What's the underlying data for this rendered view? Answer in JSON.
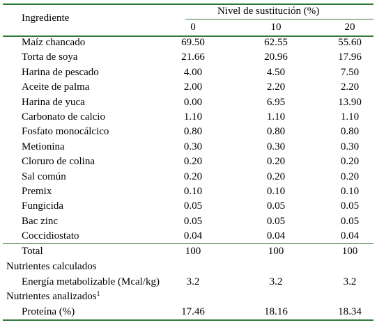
{
  "header": {
    "ingredient_label": "Ingrediente",
    "group_label": "Nivel de sustitución (%)",
    "columns": [
      "0",
      "10",
      "20"
    ]
  },
  "rows": [
    {
      "name": "Maíz chancado",
      "values": [
        "69.50",
        "62.55",
        "55.60"
      ]
    },
    {
      "name": "Torta de soya",
      "values": [
        "21.66",
        "20.96",
        "17.96"
      ]
    },
    {
      "name": "Harina de pescado",
      "values": [
        "4.00",
        "4.50",
        "7.50"
      ]
    },
    {
      "name": "Aceite de palma",
      "values": [
        "2.00",
        "2.20",
        "2.20"
      ]
    },
    {
      "name": "Harina de yuca",
      "values": [
        "0.00",
        "6.95",
        "13.90"
      ]
    },
    {
      "name": "Carbonato de calcio",
      "values": [
        "1.10",
        "1.10",
        "1.10"
      ]
    },
    {
      "name": "Fosfato monocálcico",
      "values": [
        "0.80",
        "0.80",
        "0.80"
      ]
    },
    {
      "name": "Metionina",
      "values": [
        "0.30",
        "0.30",
        "0.30"
      ]
    },
    {
      "name": "Cloruro de colina",
      "values": [
        "0.20",
        "0.20",
        "0.20"
      ]
    },
    {
      "name": "Sal común",
      "values": [
        "0.20",
        "0.20",
        "0.20"
      ]
    },
    {
      "name": "Premix",
      "values": [
        "0.10",
        "0.10",
        "0.10"
      ]
    },
    {
      "name": "Fungicida",
      "values": [
        "0.05",
        "0.05",
        "0.05"
      ]
    },
    {
      "name": "Bac zinc",
      "values": [
        "0.05",
        "0.05",
        "0.05"
      ]
    },
    {
      "name": "Coccidiostato",
      "values": [
        "0.04",
        "0.04",
        "0.04"
      ]
    }
  ],
  "total": {
    "name": "Total",
    "values": [
      "100",
      "100",
      "100"
    ]
  },
  "calculated": {
    "heading": "Nutrientes calculados",
    "rows": [
      {
        "name": "Energía metabolizable (Mcal/kg)",
        "values": [
          "3.2",
          "3.2",
          "3.2"
        ]
      }
    ]
  },
  "analyzed": {
    "heading": "Nutrientes analizados",
    "footnote_mark": "1",
    "rows": [
      {
        "name": "Proteína (%)",
        "values": [
          "17.46",
          "18.16",
          "18.34"
        ]
      }
    ]
  }
}
